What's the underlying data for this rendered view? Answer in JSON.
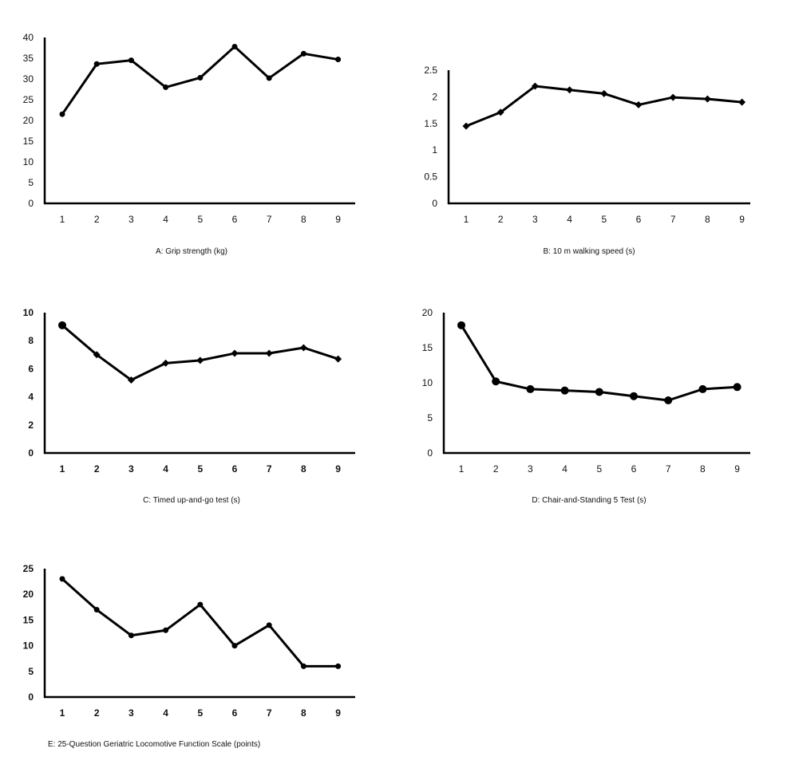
{
  "chart_data": [
    {
      "id": "A",
      "type": "line",
      "caption": "A: Grip strength (kg)",
      "categories": [
        "1",
        "2",
        "3",
        "4",
        "5",
        "6",
        "7",
        "8",
        "9"
      ],
      "values": [
        21.5,
        33.6,
        34.5,
        28.0,
        30.3,
        37.8,
        30.2,
        36.1,
        34.7
      ],
      "ylim": [
        0,
        40
      ],
      "yticks": [
        "0",
        "5",
        "10",
        "15",
        "20",
        "25",
        "30",
        "35",
        "40"
      ],
      "marker": "circle",
      "bold_ticks": false
    },
    {
      "id": "B",
      "type": "line",
      "caption": "B: 10 m walking speed (s)",
      "categories": [
        "1",
        "2",
        "3",
        "4",
        "5",
        "6",
        "7",
        "8",
        "9"
      ],
      "values": [
        1.45,
        1.71,
        2.2,
        2.13,
        2.06,
        1.85,
        1.99,
        1.96,
        1.9
      ],
      "ylim": [
        0,
        2.5
      ],
      "yticks": [
        "0",
        "0.5",
        "1",
        "1.5",
        "2",
        "2.5"
      ],
      "marker": "diamond",
      "bold_ticks": false
    },
    {
      "id": "C",
      "type": "line",
      "caption": "C: Timed up-and-go test (s)",
      "categories": [
        "1",
        "2",
        "3",
        "4",
        "5",
        "6",
        "7",
        "8",
        "9"
      ],
      "values": [
        9.1,
        7.0,
        5.2,
        6.4,
        6.6,
        7.1,
        7.1,
        7.5,
        6.7
      ],
      "ylim": [
        0,
        10
      ],
      "yticks": [
        "0",
        "2",
        "4",
        "6",
        "8",
        "10"
      ],
      "marker": "diamond",
      "first_marker_large": true,
      "bold_ticks": true
    },
    {
      "id": "D",
      "type": "line",
      "caption": "D: Chair-and-Standing 5 Test (s)",
      "categories": [
        "1",
        "2",
        "3",
        "4",
        "5",
        "6",
        "7",
        "8",
        "9"
      ],
      "values": [
        18.2,
        10.2,
        9.1,
        8.9,
        8.7,
        8.1,
        7.5,
        9.1,
        9.4
      ],
      "ylim": [
        0,
        20
      ],
      "yticks": [
        "0",
        "5",
        "10",
        "15",
        "20"
      ],
      "marker": "circle-large",
      "bold_ticks": false
    },
    {
      "id": "E",
      "type": "line",
      "caption": "E: 25-Question Geriatric Locomotive Function Scale (points)",
      "categories": [
        "1",
        "2",
        "3",
        "4",
        "5",
        "6",
        "7",
        "8",
        "9"
      ],
      "values": [
        23,
        17,
        12,
        13,
        18,
        10,
        14,
        6,
        6
      ],
      "ylim": [
        0,
        25
      ],
      "yticks": [
        "0",
        "5",
        "10",
        "15",
        "20",
        "25"
      ],
      "marker": "circle",
      "bold_ticks": true
    }
  ]
}
